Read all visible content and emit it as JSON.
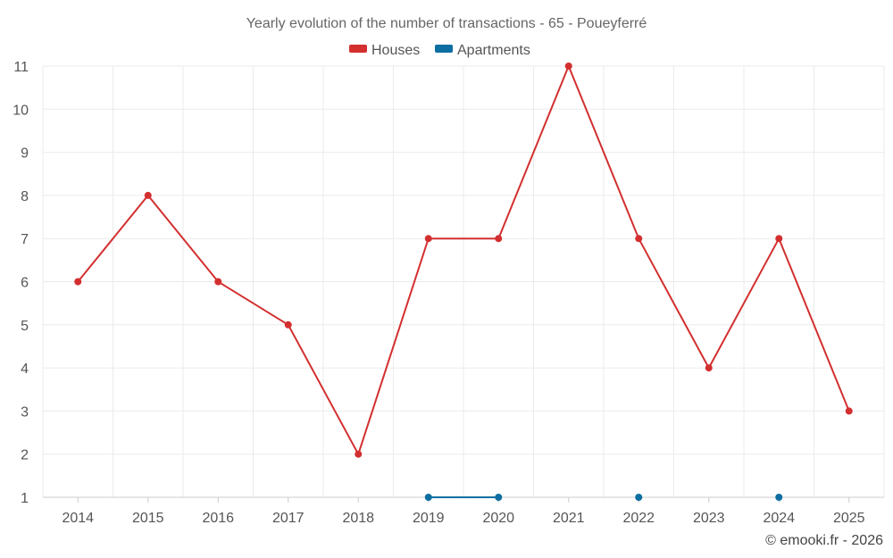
{
  "chart_data": {
    "type": "line",
    "title": "Yearly evolution of the number of transactions - 65 - Poueyferré",
    "categories": [
      "2014",
      "2015",
      "2016",
      "2017",
      "2018",
      "2019",
      "2020",
      "2021",
      "2022",
      "2023",
      "2024",
      "2025"
    ],
    "series": [
      {
        "name": "Houses",
        "color": "#d32f2f",
        "values": [
          6,
          8,
          6,
          5,
          2,
          7,
          7,
          11,
          7,
          4,
          7,
          3
        ]
      },
      {
        "name": "Apartments",
        "color": "#0d6ea1",
        "values": [
          null,
          null,
          null,
          null,
          null,
          1,
          1,
          null,
          1,
          null,
          1,
          null
        ]
      }
    ],
    "yticks": [
      1,
      2,
      3,
      4,
      5,
      6,
      7,
      8,
      9,
      10,
      11
    ],
    "ylim": [
      1,
      11
    ],
    "xlabel": "",
    "ylabel": "",
    "grid": true,
    "legend_position": "top-center"
  },
  "credit": "© emooki.fr - 2026"
}
